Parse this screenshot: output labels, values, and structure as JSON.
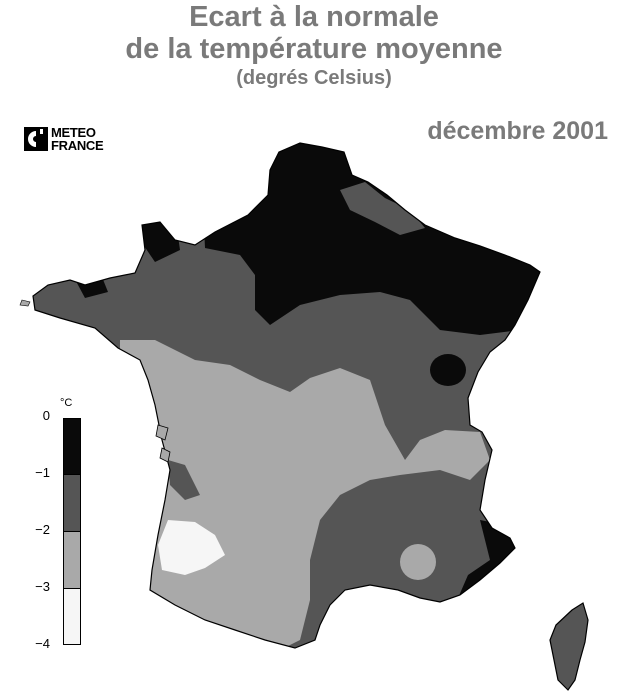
{
  "title_line1": "Ecart à la normale",
  "title_line2": "de la température moyenne",
  "title_line3": "(degrés Celsius)",
  "date": "décembre 2001",
  "logo": {
    "line1": "METEO",
    "line2": "FRANCE"
  },
  "legend": {
    "unit": "°C",
    "ticks": [
      "0",
      "−1",
      "−2",
      "−3",
      "−4"
    ],
    "classes": [
      {
        "range": "0 to −1",
        "color": "#0a0a0a"
      },
      {
        "range": "−1 to −2",
        "color": "#555555"
      },
      {
        "range": "−2 to −3",
        "color": "#a9a9a9"
      },
      {
        "range": "−3 to −4",
        "color": "#f6f6f6"
      }
    ]
  },
  "colors": {
    "outline": "#000000",
    "title": "#7a7a7a"
  }
}
